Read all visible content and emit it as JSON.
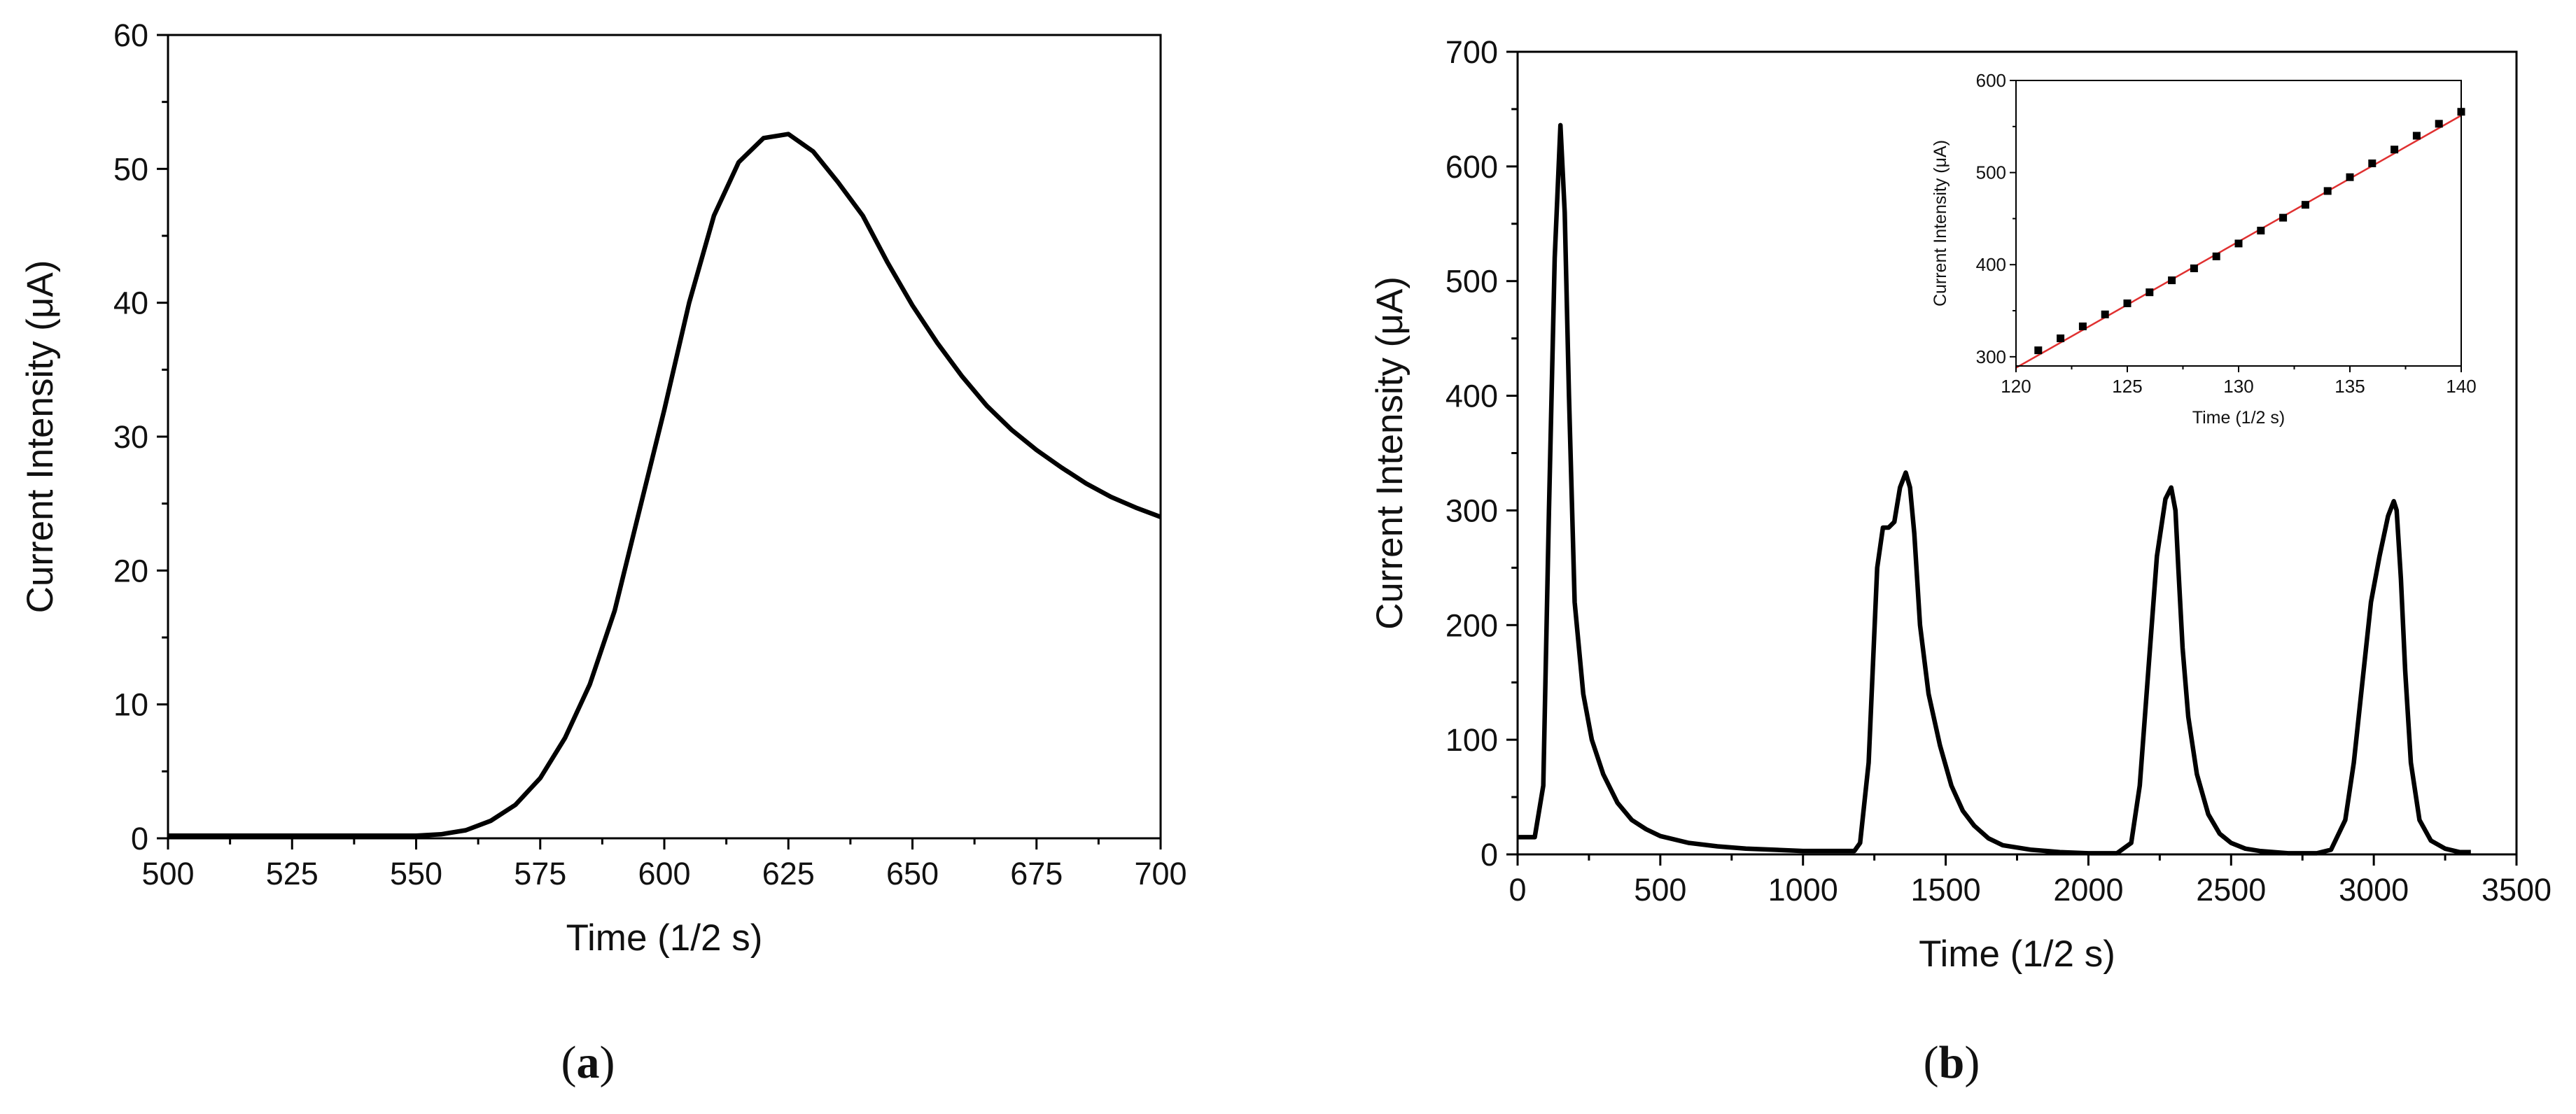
{
  "chart_data": [
    {
      "panel": "(a)",
      "type": "line",
      "xlabel": "Time (1/2 s)",
      "ylabel": "Current Intensity (μA)",
      "xlim": [
        500,
        700
      ],
      "ylim": [
        0,
        60
      ],
      "xticks": [
        "500",
        "525",
        "550",
        "575",
        "600",
        "625",
        "650",
        "675",
        "700"
      ],
      "yticks": [
        "0",
        "10",
        "20",
        "30",
        "40",
        "50",
        "60"
      ],
      "series": [
        {
          "color": "#000000",
          "x": [
            500,
            525,
            550,
            555,
            560,
            565,
            570,
            575,
            580,
            585,
            590,
            595,
            600,
            605,
            610,
            615,
            620,
            625,
            630,
            635,
            640,
            645,
            650,
            655,
            660,
            665,
            670,
            675,
            680,
            685,
            690,
            695,
            700
          ],
          "y": [
            0.2,
            0.2,
            0.2,
            0.3,
            0.6,
            1.3,
            2.5,
            4.5,
            7.5,
            11.5,
            17,
            24.5,
            32,
            40,
            46.5,
            50.5,
            52.3,
            52.6,
            51.3,
            49,
            46.5,
            43,
            39.8,
            37,
            34.5,
            32.3,
            30.5,
            29,
            27.7,
            26.5,
            25.5,
            24.7,
            24
          ]
        }
      ]
    },
    {
      "panel": "(b)",
      "type": "line",
      "xlabel": "Time (1/2 s)",
      "ylabel": "Current Intensity (μA)",
      "xlim": [
        0,
        3500
      ],
      "ylim": [
        0,
        700
      ],
      "xticks": [
        "0",
        "500",
        "1000",
        "1500",
        "2000",
        "2500",
        "3000",
        "3500"
      ],
      "yticks": [
        "0",
        "100",
        "200",
        "300",
        "400",
        "500",
        "600",
        "700"
      ],
      "series": [
        {
          "color": "#000000",
          "x": [
            0,
            60,
            90,
            110,
            130,
            150,
            165,
            180,
            200,
            230,
            260,
            300,
            350,
            400,
            450,
            500,
            600,
            700,
            800,
            900,
            1000,
            1100,
            1180,
            1200,
            1230,
            1260,
            1280,
            1300,
            1320,
            1340,
            1360,
            1375,
            1390,
            1410,
            1440,
            1480,
            1520,
            1560,
            1600,
            1650,
            1700,
            1800,
            1900,
            2000,
            2100,
            2150,
            2180,
            2210,
            2240,
            2270,
            2290,
            2305,
            2315,
            2330,
            2350,
            2380,
            2420,
            2460,
            2500,
            2550,
            2600,
            2700,
            2800,
            2850,
            2900,
            2930,
            2960,
            2990,
            3020,
            3050,
            3070,
            3080,
            3095,
            3110,
            3130,
            3160,
            3200,
            3250,
            3300,
            3340
          ],
          "y": [
            15,
            15,
            60,
            300,
            520,
            636,
            560,
            400,
            220,
            140,
            100,
            70,
            45,
            30,
            22,
            16,
            10,
            7,
            5,
            4,
            3,
            3,
            3,
            10,
            80,
            250,
            285,
            285,
            290,
            320,
            333,
            320,
            280,
            200,
            140,
            95,
            60,
            38,
            25,
            14,
            8,
            4,
            2,
            1,
            1,
            10,
            60,
            160,
            260,
            310,
            320,
            300,
            250,
            180,
            120,
            70,
            35,
            18,
            10,
            5,
            3,
            1,
            1,
            4,
            30,
            80,
            150,
            220,
            260,
            295,
            308,
            300,
            240,
            160,
            80,
            30,
            12,
            5,
            2,
            2
          ]
        }
      ],
      "inset": {
        "type": "scatter",
        "xlabel": "Time (1/2 s)",
        "ylabel": "Current Intensity (μA)",
        "xlim": [
          120,
          140
        ],
        "ylim": [
          290,
          600
        ],
        "xticks": [
          "120",
          "125",
          "130",
          "135",
          "140"
        ],
        "yticks": [
          "300",
          "400",
          "500",
          "600"
        ],
        "points": {
          "x": [
            121,
            122,
            123,
            124,
            125,
            126,
            127,
            128,
            129,
            130,
            131,
            132,
            133,
            134,
            135,
            136,
            137,
            138,
            139,
            140
          ],
          "y": [
            307,
            320,
            333,
            346,
            358,
            370,
            383,
            396,
            409,
            423,
            437,
            451,
            465,
            480,
            495,
            510,
            525,
            540,
            553,
            566
          ],
          "color": "#000000"
        },
        "fit": {
          "x": [
            120,
            140
          ],
          "y": [
            288,
            562
          ],
          "color": "#e03030"
        }
      }
    }
  ],
  "panel_labels": {
    "a": {
      "open": "(",
      "letter": "a",
      "close": ")"
    },
    "b": {
      "open": "(",
      "letter": "b",
      "close": ")"
    }
  }
}
